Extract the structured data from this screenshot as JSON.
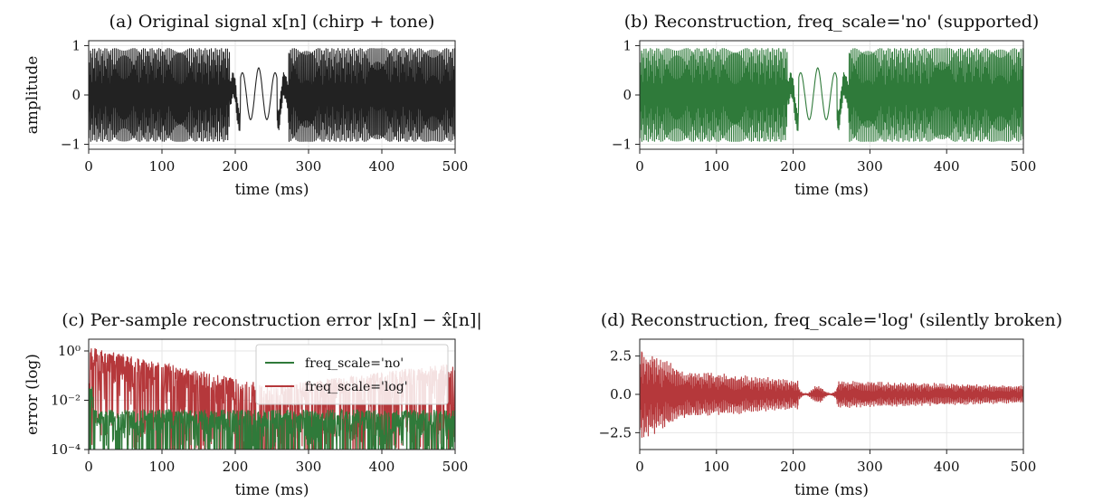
{
  "chart_data": [
    {
      "id": "a",
      "type": "line",
      "title": "(a) Original signal x[n] (chirp + tone)",
      "xlabel": "time (ms)",
      "ylabel": "amplitude",
      "xlim": [
        0,
        500
      ],
      "ylim": [
        -1.1,
        1.1
      ],
      "xticks": [
        0,
        100,
        200,
        300,
        400,
        500
      ],
      "yticks": [
        -1,
        0,
        1
      ],
      "ytick_labels": [
        "−1",
        "0",
        "1"
      ],
      "grid": true,
      "series": [
        {
          "color": "#222222",
          "signal": "chirp + tone",
          "amplitude_envelope": 0.95,
          "gap_center_ms": 232,
          "gap_half_width_ms": 25
        }
      ]
    },
    {
      "id": "b",
      "type": "line",
      "title": "(b) Reconstruction,  freq_scale='no'  (supported)",
      "xlabel": "time (ms)",
      "ylabel": "",
      "xlim": [
        0,
        500
      ],
      "ylim": [
        -1.1,
        1.1
      ],
      "xticks": [
        0,
        100,
        200,
        300,
        400,
        500
      ],
      "yticks": [
        -1,
        0,
        1
      ],
      "ytick_labels": [
        "−1",
        "0",
        "1"
      ],
      "grid": true,
      "series": [
        {
          "color": "#2f7a3a",
          "signal": "chirp + tone",
          "amplitude_envelope": 0.95,
          "gap_center_ms": 232,
          "gap_half_width_ms": 25
        }
      ]
    },
    {
      "id": "c",
      "type": "line",
      "title": "(c) Per-sample reconstruction error  |x[n] − x̂[n]|",
      "xlabel": "time (ms)",
      "ylabel": "error (log)",
      "yscale": "log",
      "xlim": [
        0,
        500
      ],
      "ylim": [
        0.0001,
        3
      ],
      "xticks": [
        0,
        100,
        200,
        300,
        400,
        500
      ],
      "yticks": [
        0.0001,
        0.01,
        1
      ],
      "ytick_labels": [
        "10⁻⁴",
        "10⁻²",
        "10⁰"
      ],
      "grid": true,
      "legend": "top-right",
      "series": [
        {
          "name": "freq_scale='no'",
          "color": "#2f7a3a",
          "level_typical": 0.0005,
          "level_peak": 0.006
        },
        {
          "name": "freq_scale='log'",
          "color": "#b5383b",
          "level_start": 1.5,
          "level_mid": 0.06,
          "level_end": 0.3
        }
      ]
    },
    {
      "id": "d",
      "type": "line",
      "title": "(d) Reconstruction,  freq_scale='log'  (silently broken)",
      "xlabel": "time (ms)",
      "ylabel": "",
      "xlim": [
        0,
        500
      ],
      "ylim": [
        -3.6,
        3.6
      ],
      "xticks": [
        0,
        100,
        200,
        300,
        400,
        500
      ],
      "yticks": [
        -2.5,
        0,
        2.5
      ],
      "ytick_labels": [
        "−2.5",
        "0.0",
        "2.5"
      ],
      "grid": true,
      "series": [
        {
          "color": "#b5383b",
          "signal": "distorted reconstruction",
          "amplitude_start": 3.2,
          "amplitude_mid": 1.0,
          "amplitude_end": 0.6
        }
      ]
    }
  ]
}
